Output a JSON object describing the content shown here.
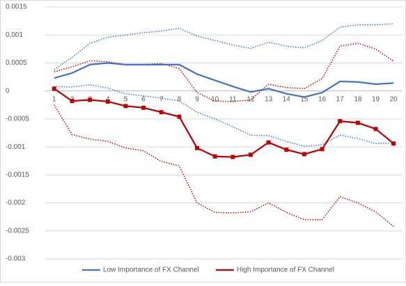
{
  "chart_data": {
    "type": "line",
    "categories": [
      "1",
      "2",
      "3",
      "4",
      "5",
      "6",
      "7",
      "8",
      "9",
      "10",
      "11",
      "12",
      "13",
      "14",
      "15",
      "16",
      "17",
      "18",
      "19",
      "20"
    ],
    "series": [
      {
        "color": "#4472c4",
        "dash": "dotted",
        "values": [
          0.00038,
          0.0006,
          0.00085,
          0.00096,
          0.001,
          0.00104,
          0.00107,
          0.00112,
          0.00098,
          0.0009,
          0.00082,
          0.00076,
          0.00087,
          0.0008,
          0.00077,
          0.0009,
          0.00114,
          0.00118,
          0.00118,
          0.0012
        ]
      },
      {
        "color": "#4472c4",
        "dash": "dotted",
        "values": [
          8e-05,
          7e-05,
          0.00011,
          5e-05,
          -5e-05,
          -9e-05,
          -0.00013,
          -0.00018,
          -0.00038,
          -0.0005,
          -0.00064,
          -0.00079,
          -0.0008,
          -0.0009,
          -0.00099,
          -0.00096,
          -0.00079,
          -0.00085,
          -0.00094,
          -0.00093
        ]
      },
      {
        "color": "#c00000",
        "dash": "dotted",
        "values": [
          0.00034,
          0.00043,
          0.00054,
          0.00052,
          0.00047,
          0.00047,
          0.00049,
          0.0004,
          -3e-05,
          -0.00018,
          -0.00019,
          -0.00016,
          0.00012,
          6e-05,
          4e-05,
          0.00022,
          0.0008,
          0.00085,
          0.00075,
          0.00053
        ]
      },
      {
        "color": "#c00000",
        "dash": "dotted",
        "values": [
          -0.00025,
          -0.00078,
          -0.00086,
          -0.0009,
          -0.00102,
          -0.00107,
          -0.00126,
          -0.00134,
          -0.002,
          -0.00217,
          -0.00218,
          -0.00216,
          -0.002,
          -0.00217,
          -0.0023,
          -0.0023,
          -0.00189,
          -0.002,
          -0.00216,
          -0.00242
        ]
      },
      {
        "name": "Low Importance of FX Channel",
        "color": "#4472c4",
        "values": [
          0.00023,
          0.00032,
          0.00047,
          0.0005,
          0.00047,
          0.00047,
          0.00047,
          0.00047,
          0.0003,
          0.00019,
          8e-05,
          -2e-05,
          4e-05,
          -5e-05,
          -0.00011,
          -3e-05,
          0.00017,
          0.00016,
          0.00012,
          0.00014
        ]
      },
      {
        "name": "High Importance of FX Channel",
        "color": "#c00000",
        "marker": "square",
        "values": [
          4e-05,
          -0.00018,
          -0.00016,
          -0.00019,
          -0.00027,
          -0.0003,
          -0.00038,
          -0.00046,
          -0.00102,
          -0.00117,
          -0.00118,
          -0.00114,
          -0.00092,
          -0.00105,
          -0.00113,
          -0.00104,
          -0.00054,
          -0.00057,
          -0.00068,
          -0.00094
        ]
      }
    ],
    "ylim": [
      -0.003,
      0.0015
    ],
    "yticks": [
      -0.003,
      -0.0025,
      -0.002,
      -0.0015,
      -0.001,
      -0.0005,
      0,
      0.0005,
      0.001,
      0.0015
    ],
    "grid": true,
    "legend": "bottom"
  }
}
